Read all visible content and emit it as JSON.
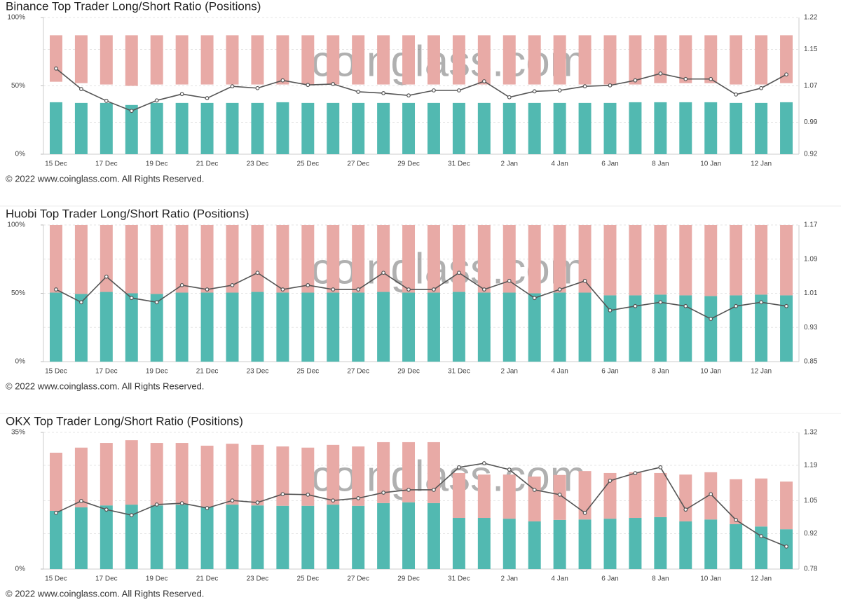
{
  "chart_data": [
    {
      "type": "bar",
      "title": "Binance Top Trader Long/Short Ratio (Positions)",
      "watermark": "coinglass.com",
      "footer": "© 2022 www.coinglass.com. All Rights Reserved.",
      "categories": [
        "15 Dec",
        null,
        "17 Dec",
        null,
        "19 Dec",
        null,
        "21 Dec",
        null,
        "23 Dec",
        null,
        "25 Dec",
        null,
        "27 Dec",
        null,
        "29 Dec",
        null,
        "31 Dec",
        null,
        "2 Jan",
        null,
        "4 Jan",
        null,
        "6 Jan",
        null,
        "8 Jan",
        null,
        "10 Jan",
        null,
        "12 Jan",
        null
      ],
      "ylim": [
        0,
        100
      ],
      "yticks": [
        {
          "value": 0,
          "label": "0%"
        },
        {
          "value": 50,
          "label": "50%"
        },
        {
          "value": 100,
          "label": "100%"
        }
      ],
      "y2lim": [
        0.92,
        1.22
      ],
      "y2ticks": [
        0.92,
        0.99,
        1.07,
        1.15,
        1.22
      ],
      "grid": true,
      "series": [
        {
          "color": "#52b9b1",
          "values": [
            38,
            37.5,
            37.5,
            36,
            37.5,
            37.5,
            37.5,
            37.5,
            37.5,
            38,
            37.5,
            37.5,
            37.5,
            37.5,
            37.5,
            37.5,
            37.5,
            37.5,
            37.5,
            37.5,
            37.5,
            37.5,
            37.5,
            38,
            38,
            38,
            38,
            37.5,
            37.5,
            38
          ]
        },
        {
          "color": "#e8aaa6",
          "base": [
            53,
            52,
            51,
            50,
            51,
            51,
            51,
            51,
            51,
            51,
            51,
            51,
            51,
            51,
            51,
            51,
            51,
            51,
            51,
            51,
            51,
            51,
            51,
            51,
            52,
            52,
            52,
            51,
            51,
            52
          ],
          "values": [
            87,
            87,
            87,
            87,
            87,
            87,
            87,
            87,
            87,
            87,
            87,
            87,
            87,
            87,
            87,
            87,
            87,
            87,
            87,
            87,
            87,
            87,
            87,
            87,
            87,
            87,
            87,
            87,
            87,
            87
          ]
        },
        {
          "color": "#555555",
          "type": "line",
          "axis": "y2",
          "values": [
            1.108,
            1.063,
            1.037,
            1.015,
            1.038,
            1.052,
            1.043,
            1.069,
            1.065,
            1.082,
            1.072,
            1.074,
            1.057,
            1.054,
            1.049,
            1.06,
            1.06,
            1.08,
            1.045,
            1.058,
            1.06,
            1.069,
            1.071,
            1.082,
            1.097,
            1.085,
            1.085,
            1.051,
            1.065,
            1.095
          ]
        }
      ]
    },
    {
      "type": "bar",
      "title": "Huobi Top Trader Long/Short Ratio (Positions)",
      "watermark": "coinglass.com",
      "footer": "© 2022 www.coinglass.com. All Rights Reserved.",
      "categories": [
        "15 Dec",
        null,
        "17 Dec",
        null,
        "19 Dec",
        null,
        "21 Dec",
        null,
        "23 Dec",
        null,
        "25 Dec",
        null,
        "27 Dec",
        null,
        "29 Dec",
        null,
        "31 Dec",
        null,
        "2 Jan",
        null,
        "4 Jan",
        null,
        "6 Jan",
        null,
        "8 Jan",
        null,
        "10 Jan",
        null,
        "12 Jan",
        null
      ],
      "ylim": [
        0,
        100
      ],
      "yticks": [
        {
          "value": 0,
          "label": "0%"
        },
        {
          "value": 50,
          "label": "50%"
        },
        {
          "value": 100,
          "label": "100%"
        }
      ],
      "y2lim": [
        0.85,
        1.17
      ],
      "y2ticks": [
        0.85,
        0.93,
        1.01,
        1.09,
        1.17
      ],
      "grid": true,
      "series": [
        {
          "color": "#52b9b1",
          "values": [
            50.5,
            49.5,
            51,
            50,
            49.5,
            50.5,
            50.5,
            50.5,
            51,
            50.5,
            50.5,
            50.5,
            50.5,
            51,
            50.5,
            50.5,
            51,
            50.5,
            50.5,
            50,
            50.5,
            50.5,
            48.5,
            48.5,
            49,
            48.5,
            48,
            48.5,
            49,
            48.5
          ]
        },
        {
          "color": "#e8aaa6",
          "base": [
            50.5,
            49.5,
            51,
            50,
            49.5,
            50.5,
            50.5,
            50.5,
            51,
            50.5,
            50.5,
            50.5,
            50.5,
            51,
            50.5,
            50.5,
            51,
            50.5,
            50.5,
            50,
            50.5,
            50.5,
            48.5,
            48.5,
            49,
            48.5,
            48,
            48.5,
            49,
            48.5
          ],
          "values": [
            100,
            100,
            100,
            100,
            100,
            100,
            100,
            100,
            100,
            100,
            100,
            100,
            100,
            100,
            100,
            100,
            100,
            100,
            100,
            100,
            100,
            100,
            100,
            100,
            100,
            100,
            100,
            100,
            100,
            100
          ]
        },
        {
          "color": "#555555",
          "type": "line",
          "axis": "y2",
          "values": [
            1.019,
            0.989,
            1.049,
            0.999,
            0.989,
            1.029,
            1.019,
            1.029,
            1.058,
            1.019,
            1.029,
            1.019,
            1.019,
            1.058,
            1.019,
            1.019,
            1.058,
            1.019,
            1.039,
            0.999,
            1.019,
            1.039,
            0.97,
            0.98,
            0.989,
            0.98,
            0.95,
            0.98,
            0.989,
            0.98
          ]
        }
      ]
    },
    {
      "type": "bar",
      "title": "OKX Top Trader Long/Short Ratio (Positions)",
      "watermark": "coinglass.com",
      "footer": "© 2022 www.coinglass.com. All Rights Reserved.",
      "categories": [
        "15 Dec",
        null,
        "17 Dec",
        null,
        "19 Dec",
        null,
        "21 Dec",
        null,
        "23 Dec",
        null,
        "25 Dec",
        null,
        "27 Dec",
        null,
        "29 Dec",
        null,
        "31 Dec",
        null,
        "2 Jan",
        null,
        "4 Jan",
        null,
        "6 Jan",
        null,
        "8 Jan",
        null,
        "10 Jan",
        null,
        "12 Jan",
        null
      ],
      "ylim": [
        0,
        35
      ],
      "yticks": [
        {
          "value": 0,
          "label": "0%"
        },
        {
          "value": 35,
          "label": "35%"
        }
      ],
      "y2lim": [
        0.78,
        1.32
      ],
      "y2ticks": [
        0.78,
        0.92,
        1.05,
        1.19,
        1.32
      ],
      "grid": true,
      "series": [
        {
          "color": "#52b9b1",
          "values": [
            14.9,
            15.8,
            16.3,
            16.5,
            16.3,
            16.5,
            16.0,
            16.5,
            16.3,
            16.2,
            16.2,
            16.5,
            16.2,
            16.9,
            17.1,
            16.9,
            13.1,
            13.1,
            12.9,
            12.2,
            12.6,
            12.7,
            12.9,
            13.1,
            13.3,
            12.2,
            12.7,
            11.5,
            10.9,
            10.2
          ]
        },
        {
          "color": "#e8aaa6",
          "base": [
            14.9,
            15.8,
            16.3,
            16.5,
            16.3,
            16.5,
            16.0,
            16.5,
            16.3,
            16.2,
            16.2,
            16.5,
            16.2,
            16.9,
            17.1,
            16.9,
            13.1,
            13.1,
            12.9,
            12.2,
            12.6,
            12.7,
            12.9,
            13.1,
            13.3,
            12.2,
            12.7,
            11.5,
            10.9,
            10.2
          ],
          "values": [
            29.8,
            31.1,
            32.3,
            33.0,
            32.3,
            32.3,
            31.6,
            32.1,
            31.8,
            31.4,
            31.1,
            31.8,
            31.4,
            32.5,
            32.5,
            32.5,
            24.6,
            24.2,
            24.2,
            23.7,
            24.1,
            25.1,
            24.6,
            24.8,
            24.6,
            24.2,
            24.8,
            23.0,
            23.2,
            22.4
          ]
        },
        {
          "color": "#555555",
          "type": "line",
          "axis": "y2",
          "values": [
            1.002,
            1.049,
            1.015,
            0.993,
            1.035,
            1.04,
            1.021,
            1.051,
            1.043,
            1.076,
            1.074,
            1.051,
            1.06,
            1.082,
            1.093,
            1.093,
            1.182,
            1.198,
            1.173,
            1.093,
            1.074,
            1.002,
            1.129,
            1.159,
            1.182,
            1.015,
            1.076,
            0.974,
            0.91,
            0.869
          ]
        }
      ]
    }
  ]
}
